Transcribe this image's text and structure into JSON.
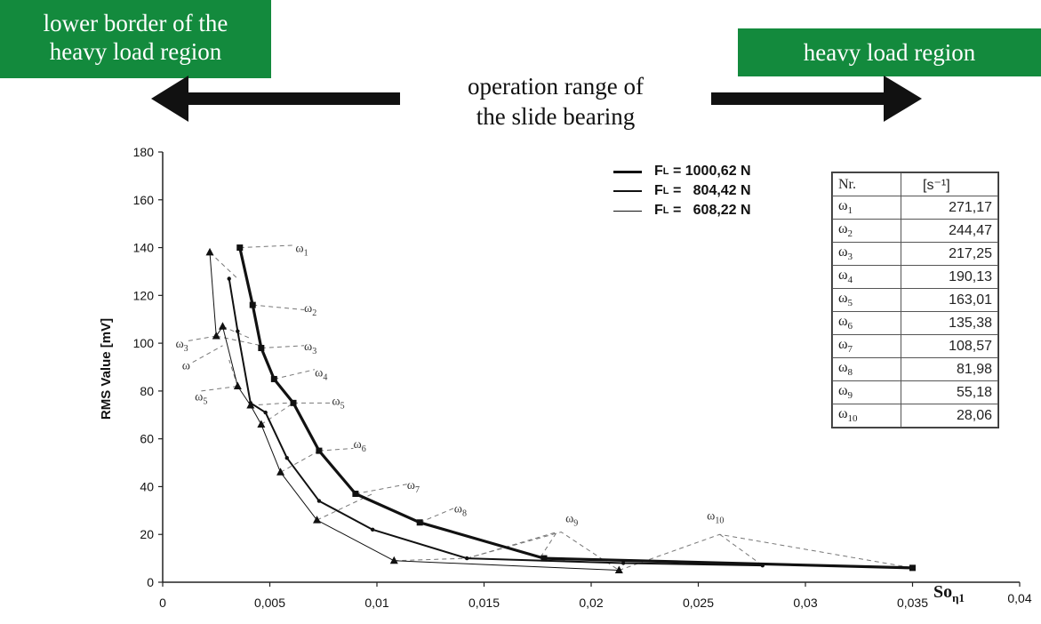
{
  "banners": {
    "left": [
      "lower border of the",
      "heavy load region"
    ],
    "right": "heavy load region"
  },
  "operation_text": [
    "operation range of",
    "the slide bearing"
  ],
  "colors": {
    "banner_green": "#138a3d",
    "line": "#111111",
    "dashed": "#777777"
  },
  "chart_data": {
    "type": "line",
    "ylabel": "RMS Value [mV]",
    "xlabel": "Soη1",
    "xlabel_main": "So",
    "xlabel_sub": "η1",
    "xlim": [
      0,
      0.04
    ],
    "ylim": [
      0,
      180
    ],
    "xticks": [
      "0",
      "0,005",
      "0,01",
      "0,015",
      "0,02",
      "0,025",
      "0,03",
      "0,035",
      "0,04"
    ],
    "xtick_values": [
      0,
      0.005,
      0.01,
      0.015,
      0.02,
      0.025,
      0.03,
      0.035,
      0.04
    ],
    "yticks": [
      "0",
      "20",
      "40",
      "60",
      "80",
      "100",
      "120",
      "140",
      "160",
      "180"
    ],
    "ytick_values": [
      0,
      20,
      40,
      60,
      80,
      100,
      120,
      140,
      160,
      180
    ],
    "legend": [
      {
        "text": "FL = 1000,62 N",
        "sym": "F",
        "sub": "L",
        "rest": " = 1000,62 N",
        "weight": 3.2
      },
      {
        "text": "FL = 804,42 N",
        "sym": "F",
        "sub": "L",
        "rest": " =   804,42 N",
        "weight": 2.0
      },
      {
        "text": "FL = 608,22 N",
        "sym": "F",
        "sub": "L",
        "rest": " =   608,22 N",
        "weight": 1.0
      }
    ],
    "series": [
      {
        "name": "FL = 1000,62 N",
        "marker": "square",
        "x": [
          0.0036,
          0.0042,
          0.0046,
          0.0052,
          0.0061,
          0.0073,
          0.009,
          0.012,
          0.0178,
          0.035
        ],
        "y": [
          140,
          116,
          98,
          85,
          75,
          55,
          37,
          25,
          10,
          6
        ]
      },
      {
        "name": "FL = 804,42 N",
        "marker": "circle",
        "x": [
          0.0031,
          0.0035,
          0.0041,
          0.0048,
          0.0058,
          0.0073,
          0.0098,
          0.0142,
          0.0215,
          0.028
        ],
        "y": [
          127,
          105,
          75,
          71,
          52,
          34,
          22,
          10,
          8,
          7
        ]
      },
      {
        "name": "FL = 608,22 N",
        "marker": "triangle",
        "x": [
          0.0022,
          0.0025,
          0.0028,
          0.0035,
          0.0041,
          0.0046,
          0.0055,
          0.0072,
          0.0108,
          0.0213
        ],
        "y": [
          138,
          103,
          107,
          82,
          74,
          66,
          46,
          26,
          9,
          5
        ]
      }
    ],
    "omega_labels": [
      {
        "id": "ω1",
        "sym": "ω",
        "sub": "1",
        "x": 0.0062,
        "y": 140
      },
      {
        "id": "ω2",
        "sym": "ω",
        "sub": "2",
        "x": 0.0066,
        "y": 115
      },
      {
        "id": "ω3",
        "sym": "ω",
        "sub": "3",
        "x": 0.0066,
        "y": 99
      },
      {
        "id": "ω4",
        "sym": "ω",
        "sub": "4",
        "x": 0.0071,
        "y": 88
      },
      {
        "id": "ω5",
        "sym": "ω",
        "sub": "5",
        "x": 0.0079,
        "y": 76
      },
      {
        "id": "ω6",
        "sym": "ω",
        "sub": "6",
        "x": 0.0089,
        "y": 58
      },
      {
        "id": "ω7",
        "sym": "ω",
        "sub": "7",
        "x": 0.0114,
        "y": 41
      },
      {
        "id": "ω8",
        "sym": "ω",
        "sub": "8",
        "x": 0.0136,
        "y": 31
      },
      {
        "id": "ω9",
        "sym": "ω",
        "sub": "9",
        "x": 0.0188,
        "y": 27
      },
      {
        "id": "ω10",
        "sym": "ω",
        "sub": "10",
        "x": 0.0254,
        "y": 28
      },
      {
        "id": "ω3-left",
        "sym": "ω",
        "sub": "3",
        "x": 0.0006,
        "y": 100
      },
      {
        "id": "ω-left",
        "sym": "ω",
        "sub": "",
        "x": 0.0009,
        "y": 91
      },
      {
        "id": "ω5-left",
        "sym": "ω",
        "sub": "5",
        "x": 0.0015,
        "y": 78
      }
    ],
    "dashed_connectors": [
      [
        [
          0.0036,
          140
        ],
        [
          0.0062,
          141
        ]
      ],
      [
        [
          0.0042,
          116
        ],
        [
          0.0066,
          114
        ]
      ],
      [
        [
          0.0046,
          98
        ],
        [
          0.0066,
          99
        ]
      ],
      [
        [
          0.0052,
          85
        ],
        [
          0.0071,
          89
        ]
      ],
      [
        [
          0.0061,
          75
        ],
        [
          0.0079,
          75
        ]
      ],
      [
        [
          0.0073,
          55
        ],
        [
          0.0089,
          56
        ]
      ],
      [
        [
          0.009,
          37
        ],
        [
          0.0114,
          41
        ]
      ],
      [
        [
          0.012,
          25
        ],
        [
          0.0136,
          31
        ]
      ],
      [
        [
          0.0022,
          138
        ],
        [
          0.0035,
          127
        ]
      ],
      [
        [
          0.0025,
          103
        ],
        [
          0.0046,
          99
        ]
      ],
      [
        [
          0.0028,
          107
        ],
        [
          0.0041,
          102
        ]
      ],
      [
        [
          0.0035,
          82
        ],
        [
          0.0031,
          93
        ]
      ],
      [
        [
          0.0041,
          74
        ],
        [
          0.0058,
          75
        ]
      ],
      [
        [
          0.0046,
          66
        ],
        [
          0.0061,
          75
        ]
      ],
      [
        [
          0.0055,
          46
        ],
        [
          0.0073,
          55
        ]
      ],
      [
        [
          0.0072,
          26
        ],
        [
          0.0098,
          37
        ]
      ],
      [
        [
          0.0108,
          9
        ],
        [
          0.0142,
          10
        ],
        [
          0.0184,
          21
        ],
        [
          0.0176,
          10
        ]
      ],
      [
        [
          0.0142,
          10
        ],
        [
          0.0186,
          21
        ],
        [
          0.0213,
          5
        ]
      ],
      [
        [
          0.0213,
          5
        ],
        [
          0.026,
          20
        ],
        [
          0.035,
          6
        ]
      ],
      [
        [
          0.026,
          20
        ],
        [
          0.028,
          7
        ]
      ],
      [
        [
          0.0012,
          101
        ],
        [
          0.0025,
          103
        ]
      ],
      [
        [
          0.0014,
          92
        ],
        [
          0.0028,
          99
        ]
      ],
      [
        [
          0.0018,
          80
        ],
        [
          0.0035,
          82
        ]
      ]
    ]
  },
  "omega_table": {
    "header_sym": "Nr.",
    "header_unit": "[s⁻¹]",
    "rows": [
      {
        "sym": "ω",
        "sub": "1",
        "value": "271,17"
      },
      {
        "sym": "ω",
        "sub": "2",
        "value": "244,47"
      },
      {
        "sym": "ω",
        "sub": "3",
        "value": "217,25"
      },
      {
        "sym": "ω",
        "sub": "4",
        "value": "190,13"
      },
      {
        "sym": "ω",
        "sub": "5",
        "value": "163,01"
      },
      {
        "sym": "ω",
        "sub": "6",
        "value": "135,38"
      },
      {
        "sym": "ω",
        "sub": "7",
        "value": "108,57"
      },
      {
        "sym": "ω",
        "sub": "8",
        "value": "81,98"
      },
      {
        "sym": "ω",
        "sub": "9",
        "value": "55,18"
      },
      {
        "sym": "ω",
        "sub": "10",
        "value": "28,06"
      }
    ]
  }
}
